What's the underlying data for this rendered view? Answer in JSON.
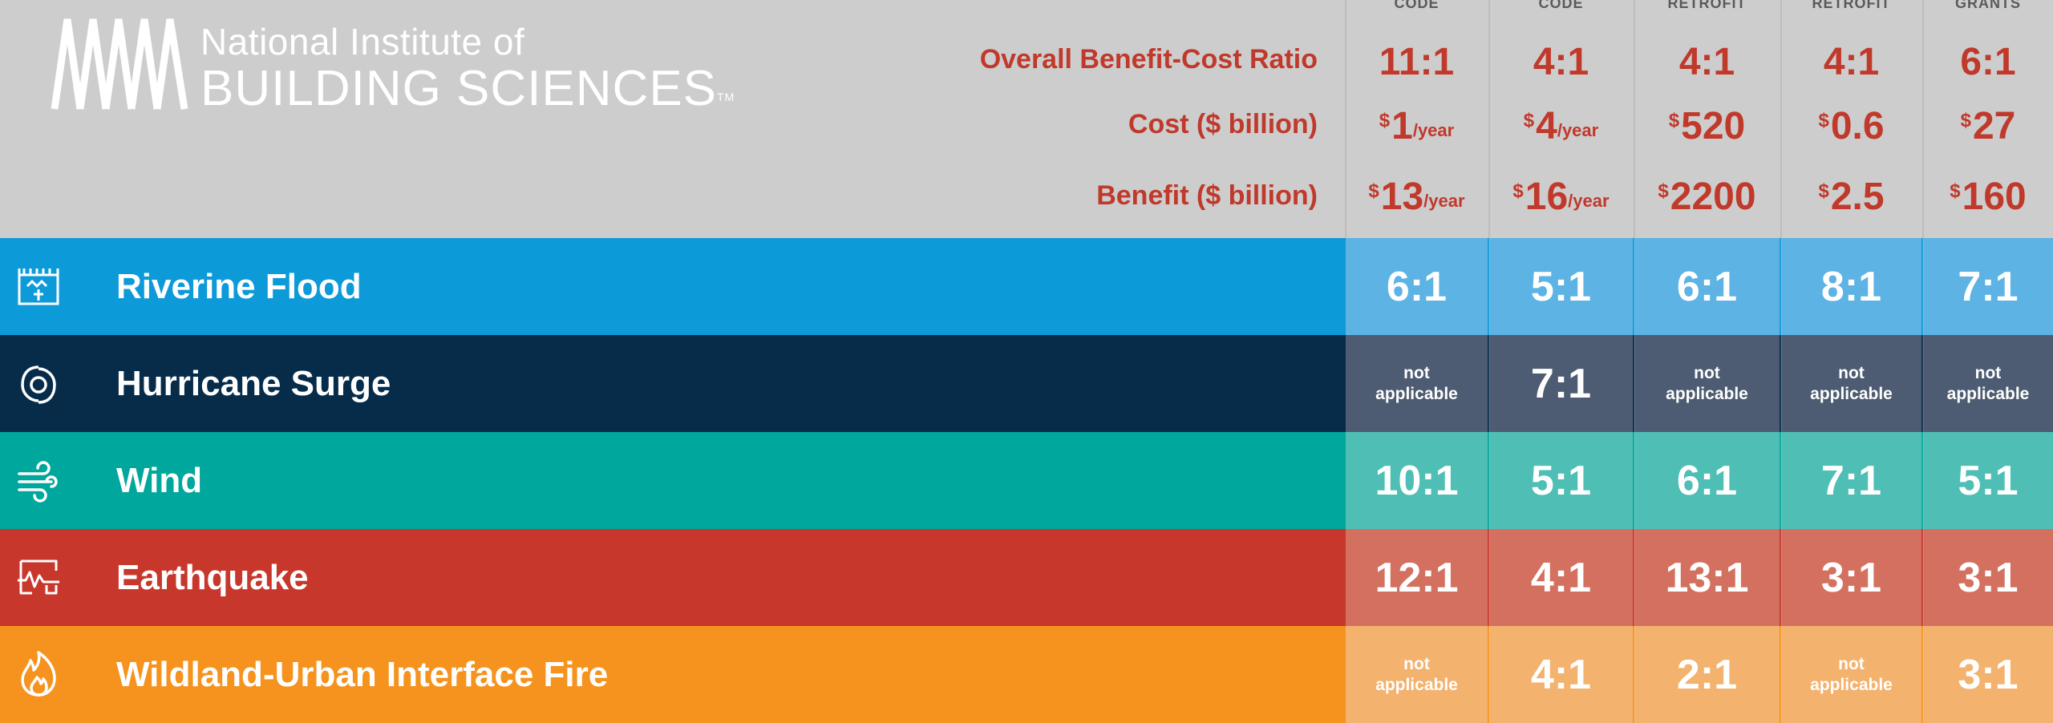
{
  "organization": {
    "line1": "National Institute of",
    "line2": "BUILDING SCIENCES",
    "tm": "TM",
    "logo_icon": "nibs-logo-icon"
  },
  "columns": [
    {
      "top_label": "CODE"
    },
    {
      "top_label": "CODE"
    },
    {
      "top_label": "RETROFIT"
    },
    {
      "top_label": "RETROFIT"
    },
    {
      "top_label": "GRANTS"
    }
  ],
  "metrics": {
    "bcr_label": "Overall Benefit-Cost Ratio",
    "cost_label": "Cost ($ billion)",
    "benefit_label": "Benefit ($ billion)",
    "currency": "$",
    "per_year": "/year",
    "bcr": [
      "11:1",
      "4:1",
      "4:1",
      "4:1",
      "6:1"
    ],
    "cost": [
      {
        "amount": "1",
        "per": "/year"
      },
      {
        "amount": "4",
        "per": "/year"
      },
      {
        "amount": "520",
        "per": ""
      },
      {
        "amount": "0.6",
        "per": ""
      },
      {
        "amount": "27",
        "per": ""
      }
    ],
    "benefit": [
      {
        "amount": "13",
        "per": "/year"
      },
      {
        "amount": "16",
        "per": "/year"
      },
      {
        "amount": "2200",
        "per": ""
      },
      {
        "amount": "2.5",
        "per": ""
      },
      {
        "amount": "160",
        "per": ""
      }
    ]
  },
  "hazards": [
    {
      "name": "Riverine Flood",
      "icon": "flood-icon",
      "color": "#0d9ad9",
      "cell_color": "#5cb3e4",
      "values": [
        "6:1",
        "5:1",
        "6:1",
        "8:1",
        "7:1"
      ]
    },
    {
      "name": "Hurricane Surge",
      "icon": "hurricane-icon",
      "color": "#062c4a",
      "cell_color": "#4d5c72",
      "values": [
        "not applicable",
        "7:1",
        "not applicable",
        "not applicable",
        "not applicable"
      ]
    },
    {
      "name": "Wind",
      "icon": "wind-icon",
      "color": "#00a79c",
      "cell_color": "#4fbfb6",
      "values": [
        "10:1",
        "5:1",
        "6:1",
        "7:1",
        "5:1"
      ]
    },
    {
      "name": "Earthquake",
      "icon": "earthquake-icon",
      "color": "#c8372b",
      "cell_color": "#d4705f",
      "values": [
        "12:1",
        "4:1",
        "13:1",
        "3:1",
        "3:1"
      ]
    },
    {
      "name": "Wildland-Urban Interface Fire",
      "icon": "fire-icon",
      "color": "#f6931f",
      "cell_color": "#f3b26e",
      "values": [
        "not applicable",
        "4:1",
        "2:1",
        "not applicable",
        "3:1"
      ]
    }
  ],
  "na_text": {
    "line1": "not",
    "line2": "applicable"
  }
}
